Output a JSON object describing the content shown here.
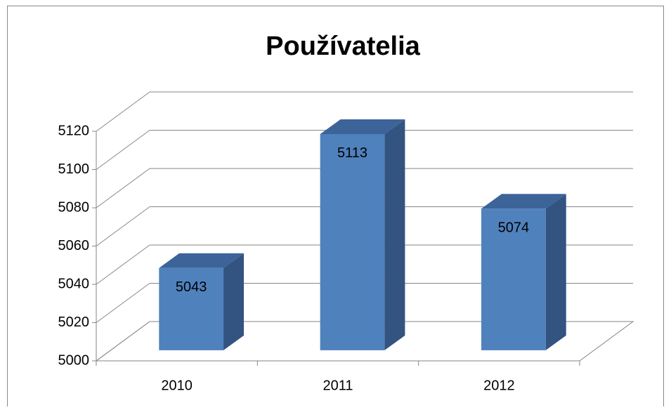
{
  "chart_data": {
    "type": "bar3d",
    "title": "Používatelia",
    "categories": [
      "2010",
      "2011",
      "2012"
    ],
    "values": [
      5043,
      5113,
      5074
    ],
    "color": "#4f81bd",
    "ylim": [
      5000,
      5120
    ],
    "yticks": [
      5000,
      5020,
      5040,
      5060,
      5080,
      5100,
      5120
    ],
    "grid": true
  }
}
